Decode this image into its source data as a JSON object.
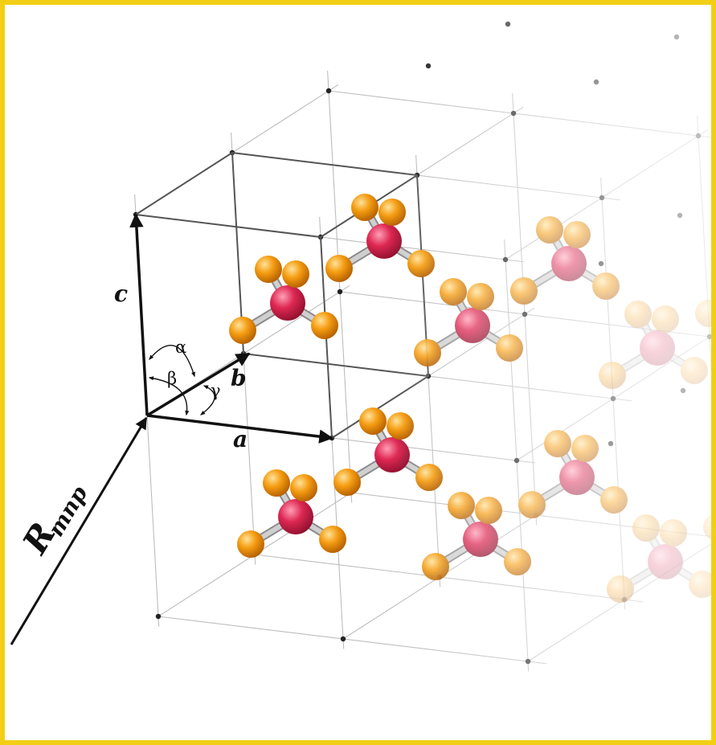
{
  "figure": {
    "colors": {
      "frame": "#f2cf15",
      "lattice_lines": "#bdbdbd",
      "cell_edges": "#555555",
      "vectors": "#111111",
      "central_atom": "#d9254f",
      "ligand_atom": "#f29a0a",
      "bond": "#cfcfcf"
    },
    "labels": {
      "vector_a": "a",
      "vector_b": "b",
      "vector_c": "c",
      "vector_R": "R",
      "vector_R_subscript": "mnp",
      "angle_alpha": "α",
      "angle_beta": "β",
      "angle_gamma": "γ"
    },
    "icons": {
      "molecule": "tetrahedral-molecule-icon",
      "lattice_point": "lattice-point-dot"
    }
  }
}
